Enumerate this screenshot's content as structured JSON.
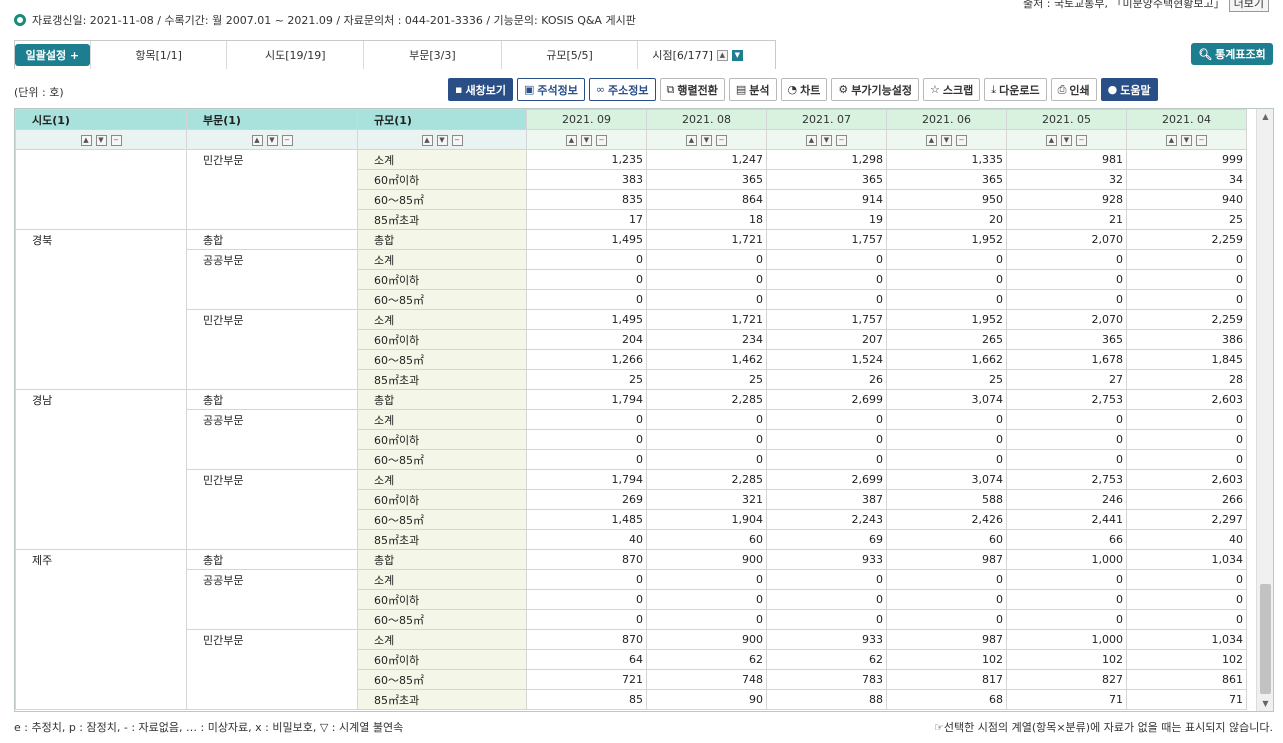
{
  "source": {
    "text": "출처 : 국토교통부, 「미분양주택현황보고」",
    "more_label": "더보기"
  },
  "info": {
    "text": "자료갱신일: 2021-11-08 / 수록기간: 월 2007.01 ~ 2021.09 / 자료문의처 : 044-201-3336 / 기능문의: KOSIS Q&A 게시판"
  },
  "tabs": {
    "set_label": "일괄설정 +",
    "items": [
      "항목[1/1]",
      "시도[19/19]",
      "부문[3/3]",
      "규모[5/5]",
      "시점[6/177]"
    ]
  },
  "search_button": "통계표조회",
  "unit": "(단위 : 호)",
  "toolbar": {
    "new_window": "새창보기",
    "annotation": "주석정보",
    "short_url": "주소정보",
    "transpose": "행렬전환",
    "analysis": "분석",
    "chart": "차트",
    "extra": "부가기능설정",
    "scrap": "스크랩",
    "download": "다운로드",
    "print": "인쇄",
    "help": "도움말"
  },
  "table": {
    "headers": {
      "sido": "시도(1)",
      "sector": "부문(1)",
      "size": "규모(1)"
    },
    "periods": [
      "2021. 09",
      "2021. 08",
      "2021. 07",
      "2021. 06",
      "2021. 05",
      "2021. 04"
    ],
    "rows": [
      {
        "k1": "",
        "k2": "민간부문",
        "k3": "소계",
        "v": [
          "1,235",
          "1,247",
          "1,298",
          "1,335",
          "981",
          "999"
        ]
      },
      {
        "k1": "",
        "k2": "",
        "k3": "60㎡이하",
        "v": [
          "383",
          "365",
          "365",
          "365",
          "32",
          "34"
        ]
      },
      {
        "k1": "",
        "k2": "",
        "k3": "60～85㎡",
        "v": [
          "835",
          "864",
          "914",
          "950",
          "928",
          "940"
        ]
      },
      {
        "k1": "",
        "k2": "",
        "k3": "85㎡초과",
        "v": [
          "17",
          "18",
          "19",
          "20",
          "21",
          "25"
        ]
      },
      {
        "k1": "경북",
        "k2": "총합",
        "k3": "총합",
        "v": [
          "1,495",
          "1,721",
          "1,757",
          "1,952",
          "2,070",
          "2,259"
        ]
      },
      {
        "k1": "",
        "k2": "공공부문",
        "k3": "소계",
        "v": [
          "0",
          "0",
          "0",
          "0",
          "0",
          "0"
        ]
      },
      {
        "k1": "",
        "k2": "",
        "k3": "60㎡이하",
        "v": [
          "0",
          "0",
          "0",
          "0",
          "0",
          "0"
        ]
      },
      {
        "k1": "",
        "k2": "",
        "k3": "60～85㎡",
        "v": [
          "0",
          "0",
          "0",
          "0",
          "0",
          "0"
        ]
      },
      {
        "k1": "",
        "k2": "민간부문",
        "k3": "소계",
        "v": [
          "1,495",
          "1,721",
          "1,757",
          "1,952",
          "2,070",
          "2,259"
        ]
      },
      {
        "k1": "",
        "k2": "",
        "k3": "60㎡이하",
        "v": [
          "204",
          "234",
          "207",
          "265",
          "365",
          "386"
        ]
      },
      {
        "k1": "",
        "k2": "",
        "k3": "60～85㎡",
        "v": [
          "1,266",
          "1,462",
          "1,524",
          "1,662",
          "1,678",
          "1,845"
        ]
      },
      {
        "k1": "",
        "k2": "",
        "k3": "85㎡초과",
        "v": [
          "25",
          "25",
          "26",
          "25",
          "27",
          "28"
        ]
      },
      {
        "k1": "경남",
        "k2": "총합",
        "k3": "총합",
        "v": [
          "1,794",
          "2,285",
          "2,699",
          "3,074",
          "2,753",
          "2,603"
        ]
      },
      {
        "k1": "",
        "k2": "공공부문",
        "k3": "소계",
        "v": [
          "0",
          "0",
          "0",
          "0",
          "0",
          "0"
        ]
      },
      {
        "k1": "",
        "k2": "",
        "k3": "60㎡이하",
        "v": [
          "0",
          "0",
          "0",
          "0",
          "0",
          "0"
        ]
      },
      {
        "k1": "",
        "k2": "",
        "k3": "60～85㎡",
        "v": [
          "0",
          "0",
          "0",
          "0",
          "0",
          "0"
        ]
      },
      {
        "k1": "",
        "k2": "민간부문",
        "k3": "소계",
        "v": [
          "1,794",
          "2,285",
          "2,699",
          "3,074",
          "2,753",
          "2,603"
        ]
      },
      {
        "k1": "",
        "k2": "",
        "k3": "60㎡이하",
        "v": [
          "269",
          "321",
          "387",
          "588",
          "246",
          "266"
        ]
      },
      {
        "k1": "",
        "k2": "",
        "k3": "60～85㎡",
        "v": [
          "1,485",
          "1,904",
          "2,243",
          "2,426",
          "2,441",
          "2,297"
        ]
      },
      {
        "k1": "",
        "k2": "",
        "k3": "85㎡초과",
        "v": [
          "40",
          "60",
          "69",
          "60",
          "66",
          "40"
        ]
      },
      {
        "k1": "제주",
        "k2": "총합",
        "k3": "총합",
        "v": [
          "870",
          "900",
          "933",
          "987",
          "1,000",
          "1,034"
        ]
      },
      {
        "k1": "",
        "k2": "공공부문",
        "k3": "소계",
        "v": [
          "0",
          "0",
          "0",
          "0",
          "0",
          "0"
        ]
      },
      {
        "k1": "",
        "k2": "",
        "k3": "60㎡이하",
        "v": [
          "0",
          "0",
          "0",
          "0",
          "0",
          "0"
        ]
      },
      {
        "k1": "",
        "k2": "",
        "k3": "60～85㎡",
        "v": [
          "0",
          "0",
          "0",
          "0",
          "0",
          "0"
        ]
      },
      {
        "k1": "",
        "k2": "민간부문",
        "k3": "소계",
        "v": [
          "870",
          "900",
          "933",
          "987",
          "1,000",
          "1,034"
        ]
      },
      {
        "k1": "",
        "k2": "",
        "k3": "60㎡이하",
        "v": [
          "64",
          "62",
          "62",
          "102",
          "102",
          "102"
        ]
      },
      {
        "k1": "",
        "k2": "",
        "k3": "60～85㎡",
        "v": [
          "721",
          "748",
          "783",
          "817",
          "827",
          "861"
        ]
      },
      {
        "k1": "",
        "k2": "",
        "k3": "85㎡초과",
        "v": [
          "85",
          "90",
          "88",
          "68",
          "71",
          "71"
        ]
      }
    ]
  },
  "legend": "e : 추정치, p : 잠정치, - : 자료없음, … : 미상자료, x : 비밀보호, ▽ : 시계열 불연속",
  "note": "☞선택한 시점의 계열(항목×분류)에 자료가 없을 때는 표시되지 않습니다."
}
